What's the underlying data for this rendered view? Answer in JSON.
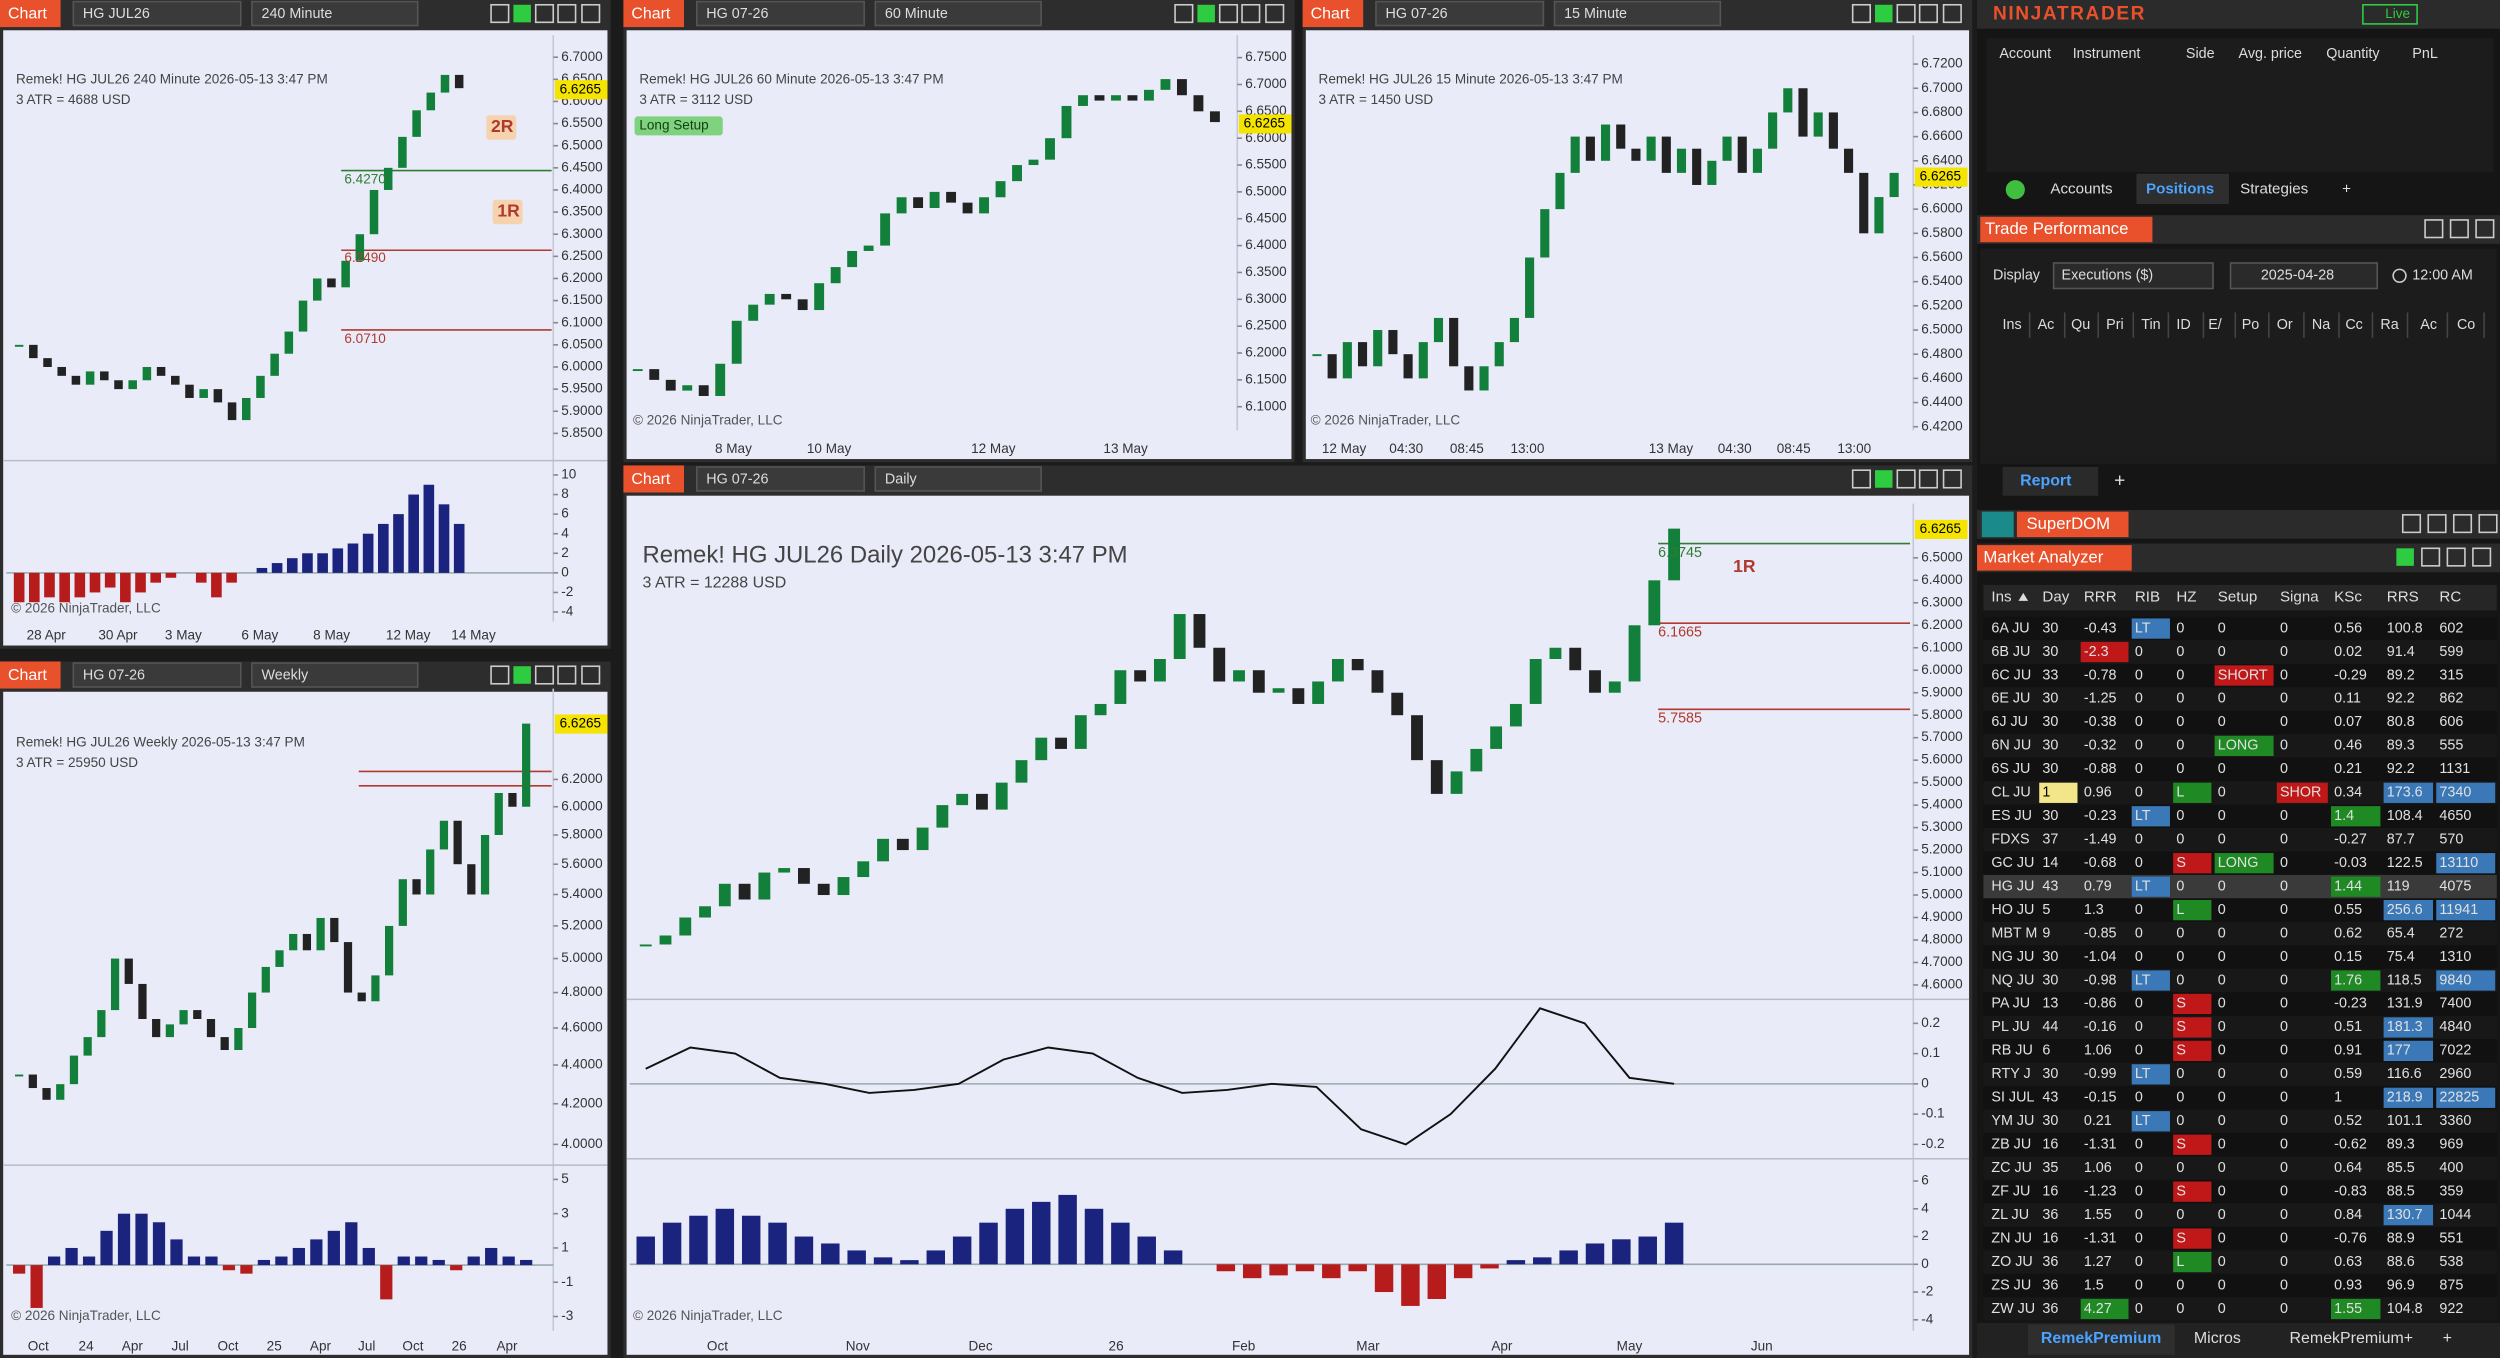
{
  "charts": [
    {
      "tab": "Chart",
      "instrument": "HG JUL26",
      "interval": "240 Minute",
      "info": "Remek!  HG JUL26  240 Minute  2026-05-13 3:47 PM",
      "atr": "3 ATR = 4688 USD",
      "copyright": "© 2026 NinjaTrader, LLC",
      "last_price": "6.6265",
      "price_ticks": [
        "6.7000",
        "6.6500",
        "6.6000",
        "6.5500",
        "6.5000",
        "6.4500",
        "6.4000",
        "6.3500",
        "6.3000",
        "6.2500",
        "6.2000",
        "6.1500",
        "6.1000",
        "6.0500",
        "6.0000",
        "5.9500",
        "5.9000",
        "5.8500"
      ],
      "ylim": [
        5.792,
        6.75
      ],
      "log_scale": false,
      "closes": [
        6.05,
        6.02,
        6.0,
        5.98,
        5.96,
        5.99,
        5.97,
        5.95,
        5.97,
        6.0,
        5.98,
        5.96,
        5.93,
        5.95,
        5.92,
        5.88,
        5.93,
        5.98,
        6.03,
        6.08,
        6.15,
        6.2,
        6.18,
        6.24,
        6.3,
        6.4,
        6.45,
        6.52,
        6.58,
        6.62,
        6.66,
        6.63
      ],
      "x_labels": [
        "28 Apr",
        "30 Apr",
        "3 May",
        "6 May",
        "8 May",
        "12 May",
        "14 May"
      ],
      "annotations": [
        "2R",
        "1R",
        "6.4270",
        "6.2490",
        "6.0710"
      ],
      "osc": [
        {
          "ticks": [
            "10",
            "8",
            "6",
            "4",
            "2",
            "0",
            "-2",
            "-4"
          ],
          "ylim": [
            -4.98,
            11.3
          ],
          "histogram": [
            -3,
            -3,
            -2.5,
            -3,
            -2.5,
            -2,
            -1.5,
            -3,
            -2,
            -1,
            -0.5,
            0,
            -1,
            -2.5,
            -1,
            0,
            0.5,
            1,
            1.5,
            2,
            2,
            2.5,
            3,
            4,
            5,
            6,
            8,
            9,
            7,
            5
          ]
        }
      ]
    },
    {
      "tab": "Chart",
      "instrument": "HG 07-26",
      "interval": "60 Minute",
      "info": "Remek!  HG JUL26  60 Minute  2026-05-13 3:47 PM",
      "atr": "3 ATR = 3112 USD",
      "copyright": "© 2026 NinjaTrader, LLC",
      "last_price": "6.6265",
      "price_ticks": [
        "6.7500",
        "6.7000",
        "6.6500",
        "6.6000",
        "6.5500",
        "6.5000",
        "6.4500",
        "6.4000",
        "6.3500",
        "6.3000",
        "6.2500",
        "6.2000",
        "6.1500",
        "6.1000"
      ],
      "ylim": [
        6.056,
        6.792
      ],
      "log_scale": false,
      "closes": [
        6.17,
        6.15,
        6.13,
        6.14,
        6.12,
        6.18,
        6.26,
        6.29,
        6.31,
        6.3,
        6.28,
        6.33,
        6.36,
        6.39,
        6.4,
        6.46,
        6.49,
        6.47,
        6.5,
        6.48,
        6.46,
        6.49,
        6.52,
        6.55,
        6.56,
        6.6,
        6.66,
        6.68,
        6.67,
        6.68,
        6.67,
        6.69,
        6.71,
        6.68,
        6.65,
        6.63
      ],
      "x_labels": [
        "8 May",
        "10 May",
        "12 May",
        "13 May"
      ],
      "annotations": [
        "Long Setup"
      ],
      "osc": []
    },
    {
      "tab": "Chart",
      "instrument": "HG 07-26",
      "interval": "15 Minute",
      "info": "Remek!  HG JUL26  15 Minute  2026-05-13 3:47 PM",
      "atr": "3 ATR = 1450 USD",
      "copyright": "© 2026 NinjaTrader, LLC",
      "last_price": "6.6265",
      "price_ticks": [
        "6.7200",
        "6.7000",
        "6.6800",
        "6.6600",
        "6.6400",
        "6.6200",
        "6.6000",
        "6.5800",
        "6.5600",
        "6.5400",
        "6.5200",
        "6.5000",
        "6.4800",
        "6.4600",
        "6.4400",
        "6.4200"
      ],
      "ylim": [
        6.417,
        6.744
      ],
      "log_scale": false,
      "closes": [
        6.48,
        6.46,
        6.49,
        6.47,
        6.5,
        6.48,
        6.46,
        6.49,
        6.51,
        6.47,
        6.45,
        6.47,
        6.49,
        6.51,
        6.56,
        6.6,
        6.63,
        6.66,
        6.64,
        6.67,
        6.65,
        6.64,
        6.66,
        6.63,
        6.65,
        6.62,
        6.64,
        6.66,
        6.63,
        6.65,
        6.68,
        6.7,
        6.66,
        6.68,
        6.65,
        6.63,
        6.58,
        6.61,
        6.63
      ],
      "x_labels": [
        "12 May",
        "04:30",
        "08:45",
        "13:00",
        "13 May",
        "04:30",
        "08:45",
        "13:00"
      ],
      "annotations": [],
      "osc": []
    },
    {
      "tab": "Chart",
      "instrument": "HG 07-26",
      "interval": "Weekly",
      "info": "Remek!  HG JUL26  Weekly  2026-05-13 3:47 PM",
      "atr": "3 ATR = 25950 USD",
      "copyright": "© 2026 NinjaTrader, LLC",
      "last_price": "6.6265",
      "price_ticks": [
        "6.2000",
        "6.0000",
        "5.8000",
        "5.6000",
        "5.4000",
        "5.2000",
        "5.0000",
        "4.8000",
        "4.6000",
        "4.4000",
        "4.2000",
        "4.0000"
      ],
      "ylim": [
        3.909,
        6.915
      ],
      "log_scale": true,
      "closes": [
        4.35,
        4.28,
        4.22,
        4.3,
        4.45,
        4.55,
        4.7,
        5.0,
        4.85,
        4.65,
        4.55,
        4.62,
        4.7,
        4.65,
        4.55,
        4.48,
        4.6,
        4.8,
        4.95,
        5.05,
        5.15,
        5.05,
        5.25,
        5.1,
        4.8,
        4.75,
        4.9,
        5.2,
        5.5,
        5.4,
        5.7,
        5.9,
        5.6,
        5.4,
        5.8,
        6.1,
        6.0,
        6.63
      ],
      "x_labels": [
        "Oct",
        "24",
        "Apr",
        "Jul",
        "Oct",
        "25",
        "Apr",
        "Jul",
        "Oct",
        "26",
        "Apr"
      ],
      "annotations": [],
      "osc": [
        {
          "ticks": [
            "5",
            "3",
            "1",
            "-1",
            "-3"
          ],
          "ylim": [
            -3.84,
            5.74
          ],
          "histogram": [
            -0.5,
            -2.5,
            0.5,
            1,
            0.5,
            2,
            3,
            3,
            2.5,
            1.5,
            0.5,
            0.5,
            -0.3,
            -0.5,
            0.3,
            0.5,
            1,
            1.5,
            2,
            2.5,
            1,
            -2,
            0.5,
            0.5,
            0.3,
            -0.3,
            0.5,
            1,
            0.5,
            0.3
          ]
        }
      ]
    },
    {
      "tab": "Chart",
      "instrument": "HG 07-26",
      "interval": "Daily",
      "info": "Remek!  HG JUL26  Daily  2026-05-13 3:47 PM",
      "atr": "3 ATR = 12288 USD",
      "copyright": "© 2026 NinjaTrader, LLC",
      "last_price": "6.6265",
      "price_ticks": [
        "6.5000",
        "6.4000",
        "6.3000",
        "6.2000",
        "6.1000",
        "6.0000",
        "5.9000",
        "5.8000",
        "5.7000",
        "5.6000",
        "5.5000",
        "5.4000",
        "5.3000",
        "5.2000",
        "5.1000",
        "5.0000",
        "4.9000",
        "4.8000",
        "4.7000",
        "4.6000"
      ],
      "ylim": [
        4.55,
        6.741
      ],
      "log_scale": false,
      "closes": [
        4.78,
        4.82,
        4.9,
        4.95,
        5.05,
        4.98,
        5.1,
        5.12,
        5.05,
        5.0,
        5.08,
        5.15,
        5.25,
        5.2,
        5.3,
        5.4,
        5.45,
        5.38,
        5.5,
        5.6,
        5.7,
        5.65,
        5.8,
        5.85,
        6.0,
        5.95,
        6.05,
        6.25,
        6.1,
        5.95,
        6.0,
        5.9,
        5.92,
        5.85,
        5.95,
        6.05,
        6.0,
        5.9,
        5.8,
        5.6,
        5.45,
        5.55,
        5.65,
        5.75,
        5.85,
        6.05,
        6.1,
        6.0,
        5.9,
        5.95,
        6.2,
        6.4,
        6.63
      ],
      "x_labels": [
        "Oct",
        "Nov",
        "Dec",
        "26",
        "Feb",
        "Mar",
        "Apr",
        "May",
        "Jun"
      ],
      "annotations": [
        "1R",
        "6.3745",
        "6.1665",
        "5.7585"
      ],
      "osc": [
        {
          "ticks": [
            "0.2",
            "0.1",
            "0",
            "-0.1",
            "-0.2"
          ],
          "ylim": [
            -0.237,
            0.274
          ],
          "line": [
            0.05,
            0.12,
            0.1,
            0.02,
            0.0,
            -0.03,
            -0.02,
            0.0,
            0.08,
            0.12,
            0.1,
            0.02,
            -0.03,
            -0.02,
            0.0,
            -0.01,
            -0.15,
            -0.2,
            -0.1,
            0.05,
            0.25,
            0.2,
            0.02,
            0.0
          ]
        },
        {
          "ticks": [
            "6",
            "4",
            "2",
            "0",
            "-2",
            "-4"
          ],
          "ylim": [
            -4.8,
            7.49
          ],
          "histogram": [
            2,
            3,
            3.5,
            4,
            3.5,
            3,
            2,
            1.5,
            1,
            0.5,
            0.3,
            1,
            2,
            3,
            4,
            4.5,
            5,
            4,
            3,
            2,
            1,
            0,
            -0.5,
            -1,
            -0.8,
            -0.5,
            -1,
            -0.5,
            -2,
            -3,
            -2.5,
            -1,
            -0.3,
            0.3,
            0.5,
            1,
            1.5,
            1.8,
            2,
            3
          ]
        }
      ]
    }
  ],
  "platform": {
    "logo": "NINJATRADER",
    "live": "Live",
    "positions": {
      "columns": [
        "Account",
        "Instrument",
        "Side",
        "Avg. price",
        "Quantity",
        "PnL"
      ],
      "tabs": [
        "Accounts",
        "Positions",
        "Strategies",
        "+"
      ]
    },
    "trade_performance": {
      "title": "Trade Performance",
      "display_label": "Display",
      "display": "Executions ($)",
      "date": "2025-04-28",
      "time": "12:00 AM",
      "columns": [
        "Ins",
        "Ac",
        "Qu",
        "Pri",
        "Tin",
        "ID",
        "E/",
        "Po",
        "Or",
        "Na",
        "Cc",
        "Ra",
        "Ac",
        "Co"
      ],
      "tabs": [
        "Report",
        "+"
      ]
    },
    "superdom": "SuperDOM",
    "market_analyzer": {
      "title": "Market Analyzer",
      "columns": [
        "Ins",
        "Day",
        "RRR",
        "RIB",
        "HZ",
        "Setup",
        "Signa",
        "KSc",
        "RRS",
        "RC"
      ],
      "rows": [
        [
          "6A JU",
          "30",
          "-0.43",
          {
            "text": "LT",
            "bg": "#3a78b8"
          },
          "0",
          "0",
          "0",
          "0.56",
          "100.8",
          "602"
        ],
        [
          "6B JU",
          "30",
          {
            "text": "-2.3",
            "bg": "#c01818"
          },
          "0",
          "0",
          "0",
          "0",
          "0.02",
          "91.4",
          "599"
        ],
        [
          "6C JU",
          "33",
          "-0.78",
          "0",
          "0",
          {
            "text": "SHORT",
            "bg": "#c01818"
          },
          "0",
          "-0.29",
          "89.2",
          "315"
        ],
        [
          "6E JU",
          "30",
          "-1.25",
          "0",
          "0",
          "0",
          "0",
          "0.11",
          "92.2",
          "862"
        ],
        [
          "6J JU",
          "30",
          "-0.38",
          "0",
          "0",
          "0",
          "0",
          "0.07",
          "80.8",
          "606"
        ],
        [
          "6N JU",
          "30",
          "-0.32",
          "0",
          "0",
          {
            "text": "LONG",
            "bg": "#1f8a24"
          },
          "0",
          "0.46",
          "89.3",
          "555"
        ],
        [
          "6S JU",
          "30",
          "-0.88",
          "0",
          "0",
          "0",
          "0",
          "0.21",
          "92.2",
          "1131"
        ],
        [
          "CL JU",
          {
            "text": "1",
            "bg": "#f2e58a"
          },
          "0.96",
          "0",
          {
            "text": "L",
            "bg": "#1f8a24"
          },
          "0",
          {
            "text": "SHOR",
            "bg": "#c01818"
          },
          "0.34",
          {
            "text": "173.6",
            "bg": "#3a78b8"
          },
          {
            "text": "7340",
            "bg": "#3a78b8"
          }
        ],
        [
          "ES JU",
          "30",
          "-0.23",
          {
            "text": "LT",
            "bg": "#3a78b8"
          },
          "0",
          "0",
          "0",
          {
            "text": "1.4",
            "bg": "#1f8a24"
          },
          "108.4",
          "4650"
        ],
        [
          "FDXS",
          "37",
          "-1.49",
          "0",
          "0",
          "0",
          "0",
          "-0.27",
          "87.7",
          "570"
        ],
        [
          "GC JU",
          "14",
          "-0.68",
          "0",
          {
            "text": "S",
            "bg": "#c01818"
          },
          {
            "text": "LONG",
            "bg": "#1f8a24"
          },
          "0",
          "-0.03",
          "122.5",
          {
            "text": "13110",
            "bg": "#3a78b8"
          }
        ],
        [
          "HG JU",
          "43",
          "0.79",
          {
            "text": "LT",
            "bg": "#3a78b8"
          },
          "0",
          "0",
          "0",
          {
            "text": "1.44",
            "bg": "#1f8a24"
          },
          "119",
          "4075"
        ],
        [
          "HO JU",
          "5",
          "1.3",
          "0",
          {
            "text": "L",
            "bg": "#1f8a24"
          },
          "0",
          "0",
          "0.55",
          {
            "text": "256.6",
            "bg": "#3a78b8"
          },
          {
            "text": "11941",
            "bg": "#3a78b8"
          }
        ],
        [
          "MBT M",
          "9",
          "-0.85",
          "0",
          "0",
          "0",
          "0",
          "0.62",
          "65.4",
          "272"
        ],
        [
          "NG JU",
          "30",
          "-1.04",
          "0",
          "0",
          "0",
          "0",
          "0.15",
          "75.4",
          "1310"
        ],
        [
          "NQ JU",
          "30",
          "-0.98",
          {
            "text": "LT",
            "bg": "#3a78b8"
          },
          "0",
          "0",
          "0",
          {
            "text": "1.76",
            "bg": "#1f8a24"
          },
          "118.5",
          {
            "text": "9840",
            "bg": "#3a78b8"
          }
        ],
        [
          "PA JU",
          "13",
          "-0.86",
          "0",
          {
            "text": "S",
            "bg": "#c01818"
          },
          "0",
          "0",
          "-0.23",
          "131.9",
          "7400"
        ],
        [
          "PL JU",
          "44",
          "-0.16",
          "0",
          {
            "text": "S",
            "bg": "#c01818"
          },
          "0",
          "0",
          "0.51",
          {
            "text": "181.3",
            "bg": "#3a78b8"
          },
          "4840"
        ],
        [
          "RB JU",
          "6",
          "1.06",
          "0",
          {
            "text": "S",
            "bg": "#c01818"
          },
          "0",
          "0",
          "0.91",
          {
            "text": "177",
            "bg": "#3a78b8"
          },
          "7022"
        ],
        [
          "RTY J",
          "30",
          "-0.99",
          {
            "text": "LT",
            "bg": "#3a78b8"
          },
          "0",
          "0",
          "0",
          "0.59",
          "116.6",
          "2960"
        ],
        [
          "SI JUL",
          "43",
          "-0.15",
          "0",
          "0",
          "0",
          "0",
          "1",
          {
            "text": "218.9",
            "bg": "#3a78b8"
          },
          {
            "text": "22825",
            "bg": "#3a78b8"
          }
        ],
        [
          "YM JU",
          "30",
          "0.21",
          {
            "text": "LT",
            "bg": "#3a78b8"
          },
          "0",
          "0",
          "0",
          "0.52",
          "101.1",
          "3360"
        ],
        [
          "ZB JU",
          "16",
          "-1.31",
          "0",
          {
            "text": "S",
            "bg": "#c01818"
          },
          "0",
          "0",
          "-0.62",
          "89.3",
          "969"
        ],
        [
          "ZC JU",
          "35",
          "1.06",
          "0",
          "0",
          "0",
          "0",
          "0.64",
          "85.5",
          "400"
        ],
        [
          "ZF JU",
          "16",
          "-1.23",
          "0",
          {
            "text": "S",
            "bg": "#c01818"
          },
          "0",
          "0",
          "-0.83",
          "88.5",
          "359"
        ],
        [
          "ZL JU",
          "36",
          "1.55",
          "0",
          "0",
          "0",
          "0",
          "0.84",
          {
            "text": "130.7",
            "bg": "#3a78b8"
          },
          "1044"
        ],
        [
          "ZN JU",
          "16",
          "-1.31",
          "0",
          {
            "text": "S",
            "bg": "#c01818"
          },
          "0",
          "0",
          "-0.76",
          "88.9",
          "551"
        ],
        [
          "ZO JU",
          "36",
          "1.27",
          "0",
          {
            "text": "L",
            "bg": "#1f8a24"
          },
          "0",
          "0",
          "0.63",
          "88.6",
          "538"
        ],
        [
          "ZS JU",
          "36",
          "1.5",
          "0",
          "0",
          "0",
          "0",
          "0.93",
          "96.9",
          "875"
        ],
        [
          "ZW JU",
          "36",
          {
            "text": "4.27",
            "bg": "#1f8a24"
          },
          "0",
          "0",
          "0",
          "0",
          {
            "text": "1.55",
            "bg": "#1f8a24"
          },
          "104.8",
          "922"
        ]
      ],
      "tabs": [
        "RemekPremium",
        "Micros",
        "RemekPremium+",
        "+"
      ]
    }
  }
}
